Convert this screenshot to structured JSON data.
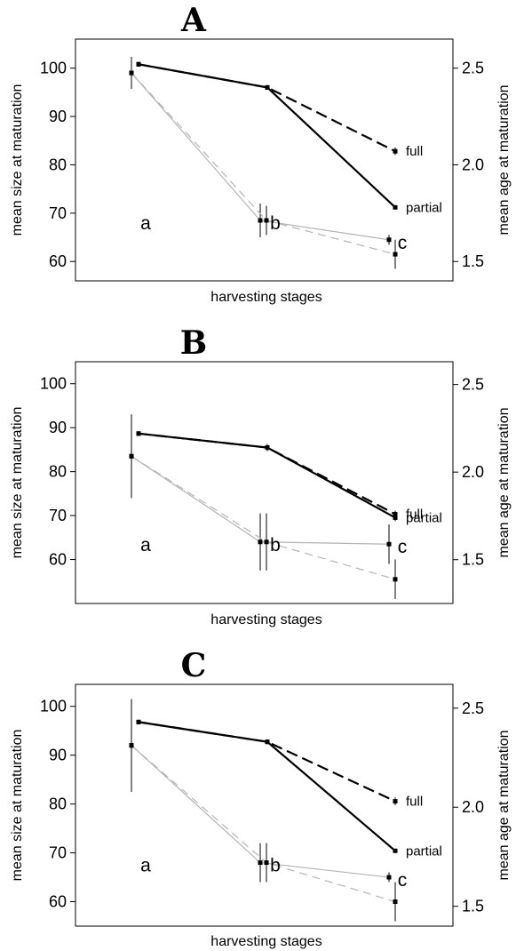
{
  "chart_data": [
    {
      "type": "line",
      "title": "A",
      "xlabel": "harvesting stages",
      "ylabel": "mean size at maturation",
      "y2label": "mean age at maturation",
      "ylim": [
        56,
        106
      ],
      "y2lim": [
        1.4,
        2.65
      ],
      "y_ticks": [
        "60",
        "70",
        "80",
        "90",
        "100"
      ],
      "y2_ticks": [
        "1.5",
        "2.0",
        "2.5"
      ],
      "stage_labels": [
        "a",
        "b",
        "c"
      ],
      "series": [
        {
          "name": "full",
          "axis": "right",
          "style": "black-dashed",
          "points": [
            {
              "stage": "a",
              "value": 2.52,
              "err": 0
            },
            {
              "stage": "b",
              "value": 2.4,
              "err": 0
            },
            {
              "stage": "c",
              "value": 2.07,
              "err": 0.02
            }
          ]
        },
        {
          "name": "partial",
          "axis": "right",
          "style": "black-solid",
          "points": [
            {
              "stage": "a",
              "value": 2.52,
              "err": 0
            },
            {
              "stage": "b",
              "value": 2.4,
              "err": 0
            },
            {
              "stage": "c",
              "value": 1.78,
              "err": 0
            }
          ]
        },
        {
          "axis": "left",
          "style": "grey-solid",
          "points": [
            {
              "stage": "a",
              "value": 99,
              "err": 3.3
            },
            {
              "stage": "b",
              "value": 68.5,
              "err": 3.5
            },
            {
              "stage": "c",
              "value": 64.5,
              "err": 1
            }
          ]
        },
        {
          "axis": "left",
          "style": "grey-dashed",
          "points": [
            {
              "stage": "a",
              "value": 99,
              "err": 3.3
            },
            {
              "stage": "b",
              "value": 68.5,
              "err": 3
            },
            {
              "stage": "c",
              "value": 61.5,
              "err": 3
            }
          ]
        }
      ]
    },
    {
      "type": "line",
      "title": "B",
      "xlabel": "harvesting stages",
      "ylabel": "mean size at maturation",
      "y2label": "mean age at maturation",
      "ylim": [
        50,
        105
      ],
      "y2lim": [
        1.25,
        2.63
      ],
      "y_ticks": [
        "60",
        "70",
        "80",
        "90",
        "100"
      ],
      "y2_ticks": [
        "1.5",
        "2.0",
        "2.5"
      ],
      "stage_labels": [
        "a",
        "b",
        "c"
      ],
      "series": [
        {
          "name": "full",
          "axis": "right",
          "style": "black-dashed",
          "points": [
            {
              "stage": "a",
              "value": 2.22,
              "err": 0
            },
            {
              "stage": "b",
              "value": 2.14,
              "err": 0.02
            },
            {
              "stage": "c",
              "value": 1.76,
              "err": 0.02
            }
          ]
        },
        {
          "name": "partial",
          "axis": "right",
          "style": "black-solid",
          "points": [
            {
              "stage": "a",
              "value": 2.22,
              "err": 0
            },
            {
              "stage": "b",
              "value": 2.14,
              "err": 0.02
            },
            {
              "stage": "c",
              "value": 1.74,
              "err": 0.02
            }
          ]
        },
        {
          "axis": "left",
          "style": "grey-solid",
          "points": [
            {
              "stage": "a",
              "value": 83.5,
              "err": 9.5
            },
            {
              "stage": "b",
              "value": 64,
              "err": 6.5
            },
            {
              "stage": "c",
              "value": 63.5,
              "err": 4.5
            }
          ]
        },
        {
          "axis": "left",
          "style": "grey-dashed",
          "points": [
            {
              "stage": "a",
              "value": 83.5,
              "err": 9.5
            },
            {
              "stage": "b",
              "value": 64,
              "err": 6.5
            },
            {
              "stage": "c",
              "value": 55.5,
              "err": 4.5
            }
          ]
        }
      ]
    },
    {
      "type": "line",
      "title": "C",
      "xlabel": "harvesting stages",
      "ylabel": "mean size at maturation",
      "y2label": "mean age at maturation",
      "ylim": [
        55,
        104.5
      ],
      "y2lim": [
        1.4,
        2.62
      ],
      "y_ticks": [
        "60",
        "70",
        "80",
        "90",
        "100"
      ],
      "y2_ticks": [
        "1.5",
        "2.0",
        "2.5"
      ],
      "stage_labels": [
        "a",
        "b",
        "c"
      ],
      "series": [
        {
          "name": "full",
          "axis": "right",
          "style": "black-dashed",
          "points": [
            {
              "stage": "a",
              "value": 2.43,
              "err": 0
            },
            {
              "stage": "b",
              "value": 2.33,
              "err": 0
            },
            {
              "stage": "c",
              "value": 2.03,
              "err": 0.02
            }
          ]
        },
        {
          "name": "partial",
          "axis": "right",
          "style": "black-solid",
          "points": [
            {
              "stage": "a",
              "value": 2.43,
              "err": 0
            },
            {
              "stage": "b",
              "value": 2.33,
              "err": 0
            },
            {
              "stage": "c",
              "value": 1.78,
              "err": 0
            }
          ]
        },
        {
          "axis": "left",
          "style": "grey-solid",
          "points": [
            {
              "stage": "a",
              "value": 92,
              "err": 9.5
            },
            {
              "stage": "b",
              "value": 68,
              "err": 4
            },
            {
              "stage": "c",
              "value": 65,
              "err": 1
            }
          ]
        },
        {
          "axis": "left",
          "style": "grey-dashed",
          "points": [
            {
              "stage": "a",
              "value": 92,
              "err": 9.5
            },
            {
              "stage": "b",
              "value": 68,
              "err": 4
            },
            {
              "stage": "c",
              "value": 60,
              "err": 4
            }
          ]
        }
      ]
    }
  ]
}
